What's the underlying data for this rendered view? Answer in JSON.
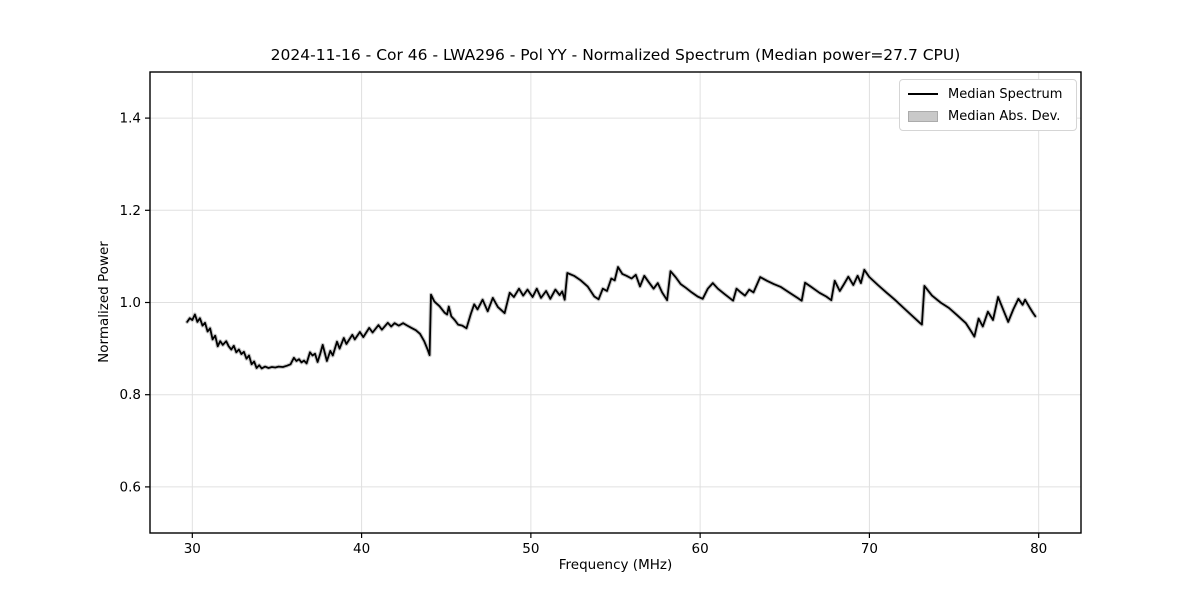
{
  "chart_data": {
    "type": "line",
    "title": "2024-11-16 - Cor 46 - LWA296 - Pol YY - Normalized Spectrum (Median power=27.7 CPU)",
    "xlabel": "Frequency (MHz)",
    "ylabel": "Normalized Power",
    "xlim": [
      27.5,
      82.5
    ],
    "ylim": [
      0.5,
      1.5
    ],
    "xticks": {
      "values": [
        30,
        40,
        50,
        60,
        70,
        80
      ],
      "labels": [
        "30",
        "40",
        "50",
        "60",
        "70",
        "80"
      ]
    },
    "yticks": {
      "values": [
        0.6,
        0.8,
        1.0,
        1.2,
        1.4
      ],
      "labels": [
        "0.6",
        "0.8",
        "1.0",
        "1.2",
        "1.4"
      ]
    },
    "grid": true,
    "legend": {
      "position": "upper right",
      "entries": [
        {
          "label": "Median Spectrum",
          "sample": "line",
          "color": "#000000"
        },
        {
          "label": "Median Abs. Dev.",
          "sample": "patch",
          "color": "#c9c9c9"
        }
      ]
    },
    "colors": {
      "line": "#000000",
      "mad_band": "#c9c9c9",
      "grid": "#e0e0e0",
      "spine": "#000000",
      "tick": "#000000",
      "background": "#ffffff"
    },
    "series": [
      {
        "name": "Median Spectrum",
        "points": [
          [
            29.7,
            0.958
          ],
          [
            29.85,
            0.966
          ],
          [
            30.0,
            0.962
          ],
          [
            30.15,
            0.974
          ],
          [
            30.3,
            0.958
          ],
          [
            30.45,
            0.966
          ],
          [
            30.6,
            0.95
          ],
          [
            30.75,
            0.956
          ],
          [
            30.9,
            0.937
          ],
          [
            31.05,
            0.944
          ],
          [
            31.2,
            0.92
          ],
          [
            31.35,
            0.928
          ],
          [
            31.5,
            0.905
          ],
          [
            31.65,
            0.916
          ],
          [
            31.8,
            0.908
          ],
          [
            32.0,
            0.916
          ],
          [
            32.15,
            0.905
          ],
          [
            32.3,
            0.898
          ],
          [
            32.45,
            0.906
          ],
          [
            32.6,
            0.892
          ],
          [
            32.75,
            0.898
          ],
          [
            32.9,
            0.888
          ],
          [
            33.05,
            0.893
          ],
          [
            33.2,
            0.878
          ],
          [
            33.35,
            0.885
          ],
          [
            33.5,
            0.866
          ],
          [
            33.65,
            0.872
          ],
          [
            33.8,
            0.858
          ],
          [
            33.95,
            0.864
          ],
          [
            34.1,
            0.857
          ],
          [
            34.3,
            0.861
          ],
          [
            34.5,
            0.858
          ],
          [
            34.7,
            0.86
          ],
          [
            34.9,
            0.859
          ],
          [
            35.1,
            0.861
          ],
          [
            35.35,
            0.86
          ],
          [
            35.6,
            0.863
          ],
          [
            35.8,
            0.866
          ],
          [
            36.0,
            0.88
          ],
          [
            36.15,
            0.873
          ],
          [
            36.3,
            0.877
          ],
          [
            36.45,
            0.87
          ],
          [
            36.6,
            0.874
          ],
          [
            36.75,
            0.868
          ],
          [
            36.95,
            0.892
          ],
          [
            37.1,
            0.885
          ],
          [
            37.25,
            0.889
          ],
          [
            37.4,
            0.871
          ],
          [
            37.55,
            0.888
          ],
          [
            37.7,
            0.908
          ],
          [
            37.95,
            0.873
          ],
          [
            38.15,
            0.895
          ],
          [
            38.3,
            0.885
          ],
          [
            38.55,
            0.915
          ],
          [
            38.7,
            0.9
          ],
          [
            38.95,
            0.923
          ],
          [
            39.1,
            0.91
          ],
          [
            39.45,
            0.93
          ],
          [
            39.6,
            0.92
          ],
          [
            39.9,
            0.936
          ],
          [
            40.1,
            0.925
          ],
          [
            40.45,
            0.945
          ],
          [
            40.65,
            0.935
          ],
          [
            41.0,
            0.951
          ],
          [
            41.2,
            0.941
          ],
          [
            41.55,
            0.956
          ],
          [
            41.75,
            0.948
          ],
          [
            41.95,
            0.955
          ],
          [
            42.2,
            0.95
          ],
          [
            42.45,
            0.955
          ],
          [
            42.7,
            0.95
          ],
          [
            42.95,
            0.945
          ],
          [
            43.2,
            0.94
          ],
          [
            43.45,
            0.932
          ],
          [
            43.7,
            0.916
          ],
          [
            43.9,
            0.898
          ],
          [
            44.02,
            0.886
          ],
          [
            44.1,
            1.017
          ],
          [
            44.3,
            1.002
          ],
          [
            44.6,
            0.992
          ],
          [
            44.9,
            0.978
          ],
          [
            45.05,
            0.974
          ],
          [
            45.15,
            0.991
          ],
          [
            45.3,
            0.97
          ],
          [
            45.5,
            0.962
          ],
          [
            45.7,
            0.952
          ],
          [
            45.95,
            0.95
          ],
          [
            46.2,
            0.944
          ],
          [
            46.45,
            0.975
          ],
          [
            46.65,
            0.996
          ],
          [
            46.85,
            0.985
          ],
          [
            47.15,
            1.006
          ],
          [
            47.45,
            0.981
          ],
          [
            47.75,
            1.01
          ],
          [
            48.05,
            0.99
          ],
          [
            48.45,
            0.977
          ],
          [
            48.75,
            1.021
          ],
          [
            49.0,
            1.012
          ],
          [
            49.3,
            1.03
          ],
          [
            49.55,
            1.015
          ],
          [
            49.8,
            1.028
          ],
          [
            50.1,
            1.012
          ],
          [
            50.35,
            1.03
          ],
          [
            50.6,
            1.01
          ],
          [
            50.9,
            1.025
          ],
          [
            51.15,
            1.008
          ],
          [
            51.45,
            1.028
          ],
          [
            51.7,
            1.016
          ],
          [
            51.85,
            1.024
          ],
          [
            52.0,
            1.006
          ],
          [
            52.15,
            1.064
          ],
          [
            52.55,
            1.058
          ],
          [
            52.95,
            1.048
          ],
          [
            53.35,
            1.035
          ],
          [
            53.75,
            1.013
          ],
          [
            54.0,
            1.007
          ],
          [
            54.25,
            1.03
          ],
          [
            54.5,
            1.025
          ],
          [
            54.75,
            1.052
          ],
          [
            54.95,
            1.048
          ],
          [
            55.15,
            1.077
          ],
          [
            55.4,
            1.062
          ],
          [
            55.65,
            1.058
          ],
          [
            55.95,
            1.052
          ],
          [
            56.2,
            1.06
          ],
          [
            56.45,
            1.035
          ],
          [
            56.7,
            1.058
          ],
          [
            56.95,
            1.045
          ],
          [
            57.25,
            1.03
          ],
          [
            57.5,
            1.042
          ],
          [
            57.75,
            1.022
          ],
          [
            58.05,
            1.005
          ],
          [
            58.25,
            1.068
          ],
          [
            58.55,
            1.055
          ],
          [
            58.85,
            1.04
          ],
          [
            59.15,
            1.032
          ],
          [
            59.5,
            1.022
          ],
          [
            59.85,
            1.013
          ],
          [
            60.15,
            1.008
          ],
          [
            60.45,
            1.03
          ],
          [
            60.75,
            1.042
          ],
          [
            61.05,
            1.03
          ],
          [
            61.45,
            1.018
          ],
          [
            61.95,
            1.004
          ],
          [
            62.15,
            1.03
          ],
          [
            62.4,
            1.022
          ],
          [
            62.65,
            1.015
          ],
          [
            62.9,
            1.028
          ],
          [
            63.15,
            1.022
          ],
          [
            63.55,
            1.055
          ],
          [
            63.95,
            1.047
          ],
          [
            64.35,
            1.04
          ],
          [
            64.75,
            1.034
          ],
          [
            65.25,
            1.022
          ],
          [
            65.75,
            1.01
          ],
          [
            66.0,
            1.004
          ],
          [
            66.2,
            1.043
          ],
          [
            66.55,
            1.034
          ],
          [
            67.05,
            1.021
          ],
          [
            67.45,
            1.013
          ],
          [
            67.75,
            1.005
          ],
          [
            67.95,
            1.047
          ],
          [
            68.25,
            1.025
          ],
          [
            68.5,
            1.04
          ],
          [
            68.75,
            1.056
          ],
          [
            69.05,
            1.038
          ],
          [
            69.3,
            1.058
          ],
          [
            69.5,
            1.042
          ],
          [
            69.7,
            1.071
          ],
          [
            70.0,
            1.055
          ],
          [
            70.5,
            1.038
          ],
          [
            71.0,
            1.022
          ],
          [
            71.5,
            1.006
          ],
          [
            72.0,
            0.989
          ],
          [
            72.5,
            0.972
          ],
          [
            73.0,
            0.955
          ],
          [
            73.1,
            0.952
          ],
          [
            73.25,
            1.036
          ],
          [
            73.7,
            1.015
          ],
          [
            74.2,
            1.0
          ],
          [
            74.7,
            0.988
          ],
          [
            75.2,
            0.972
          ],
          [
            75.7,
            0.955
          ],
          [
            76.0,
            0.938
          ],
          [
            76.2,
            0.926
          ],
          [
            76.45,
            0.965
          ],
          [
            76.7,
            0.948
          ],
          [
            77.0,
            0.98
          ],
          [
            77.3,
            0.962
          ],
          [
            77.6,
            1.012
          ],
          [
            77.9,
            0.985
          ],
          [
            78.2,
            0.958
          ],
          [
            78.5,
            0.985
          ],
          [
            78.8,
            1.008
          ],
          [
            79.05,
            0.995
          ],
          [
            79.2,
            1.006
          ],
          [
            79.45,
            0.99
          ],
          [
            79.65,
            0.978
          ],
          [
            79.8,
            0.97
          ]
        ]
      }
    ]
  }
}
